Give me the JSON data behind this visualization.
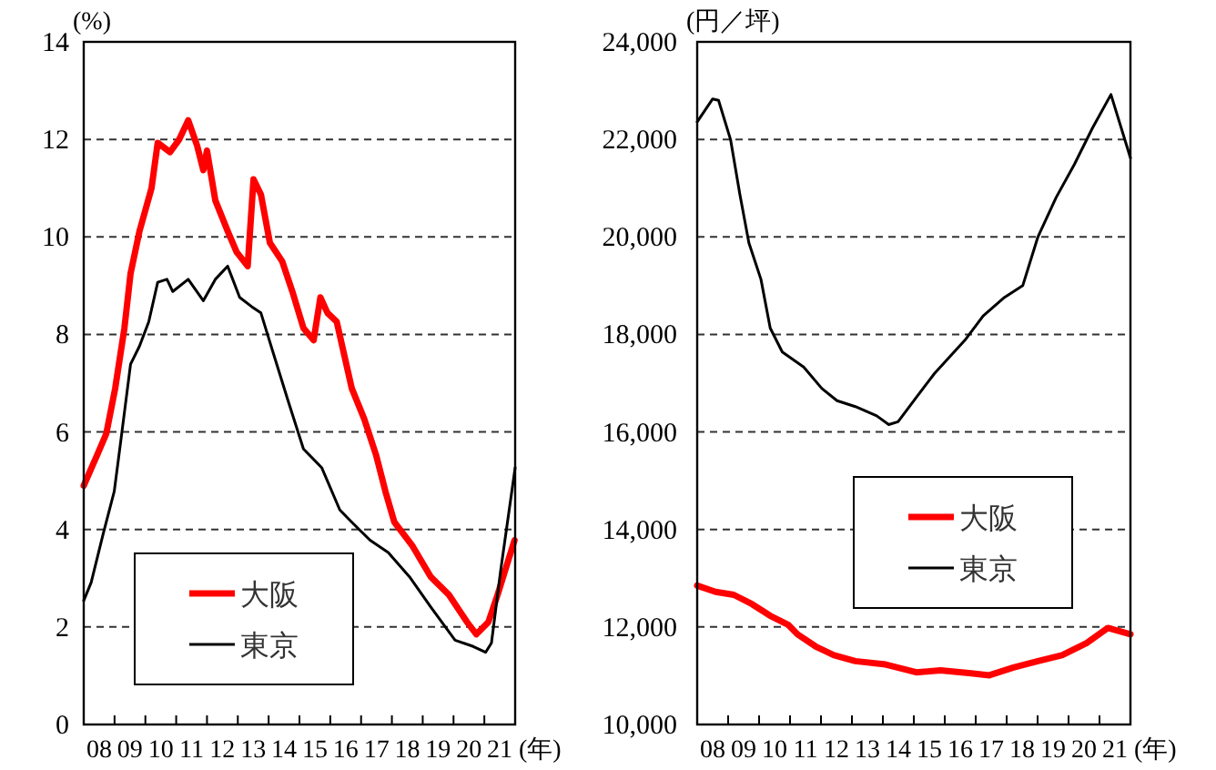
{
  "chart_data": [
    {
      "type": "line",
      "ylabel": "(%)",
      "xlabel": "(年)",
      "xlim": [
        7.5,
        21.5
      ],
      "ylim": [
        0,
        14
      ],
      "yticks": [
        0,
        2,
        4,
        6,
        8,
        10,
        12,
        14
      ],
      "xticks": [
        {
          "value": 7.5,
          "label": null
        },
        {
          "value": 8.5,
          "label": null
        },
        {
          "value": 9.5,
          "label": null
        },
        {
          "value": 10.5,
          "label": null
        },
        {
          "value": 11.5,
          "label": null
        },
        {
          "value": 12.5,
          "label": null
        },
        {
          "value": 13.5,
          "label": null
        },
        {
          "value": 14.5,
          "label": null
        },
        {
          "value": 15.5,
          "label": null
        },
        {
          "value": 16.5,
          "label": null
        },
        {
          "value": 17.5,
          "label": null
        },
        {
          "value": 18.5,
          "label": null
        },
        {
          "value": 19.5,
          "label": null
        },
        {
          "value": 20.5,
          "label": null
        },
        {
          "value": 21.5,
          "label": null
        },
        {
          "value": 8,
          "label": "08"
        },
        {
          "value": 9,
          "label": "09"
        },
        10,
        11,
        12,
        13,
        14,
        15,
        16,
        17,
        18,
        19,
        20,
        21
      ],
      "grid": "y",
      "legend": "bottom left",
      "line_style": "solid",
      "marker": "none",
      "series": [
        {
          "name": "大阪",
          "color": "#ff0000",
          "x": [
            7.5,
            7.93,
            8.23,
            8.52,
            8.82,
            9.02,
            9.31,
            9.7,
            9.9,
            10.3,
            10.59,
            10.89,
            11.18,
            11.38,
            11.5,
            11.77,
            12.17,
            12.46,
            12.82,
            13.01,
            13.25,
            13.54,
            13.94,
            14.27,
            14.63,
            14.96,
            15.18,
            15.41,
            15.71,
            16.2,
            16.6,
            16.99,
            17.29,
            17.58,
            18.17,
            18.76,
            19.35,
            19.94,
            20.24,
            20.63,
            20.93,
            21.48
          ],
          "values": [
            4.9,
            5.52,
            5.96,
            6.89,
            8.13,
            9.25,
            10.12,
            11.0,
            11.93,
            11.74,
            11.99,
            12.39,
            11.87,
            11.37,
            11.77,
            10.75,
            10.12,
            9.69,
            9.4,
            11.18,
            10.87,
            9.88,
            9.5,
            8.88,
            8.13,
            7.88,
            8.76,
            8.44,
            8.26,
            6.89,
            6.27,
            5.52,
            4.78,
            4.15,
            3.66,
            3.03,
            2.66,
            2.1,
            1.85,
            2.1,
            2.66,
            3.78
          ]
        },
        {
          "name": "東京",
          "color": "#000000",
          "x": [
            7.5,
            7.74,
            8.13,
            8.49,
            8.72,
            9.02,
            9.31,
            9.61,
            9.9,
            10.2,
            10.39,
            10.89,
            11.38,
            11.77,
            12.17,
            12.56,
            12.95,
            13.25,
            13.64,
            14.13,
            14.63,
            15.22,
            15.81,
            16.2,
            16.79,
            17.38,
            18.07,
            18.76,
            19.55,
            20.14,
            20.54,
            20.73,
            21.03,
            21.5
          ],
          "values": [
            2.54,
            2.91,
            3.91,
            4.78,
            5.9,
            7.39,
            7.76,
            8.26,
            9.07,
            9.13,
            8.88,
            9.13,
            8.69,
            9.13,
            9.4,
            8.76,
            8.57,
            8.44,
            7.64,
            6.64,
            5.65,
            5.27,
            4.4,
            4.15,
            3.78,
            3.53,
            3.03,
            2.41,
            1.73,
            1.6,
            1.48,
            1.67,
            3.16,
            5.27
          ]
        }
      ]
    },
    {
      "type": "line",
      "ylabel": "(円／坪)",
      "xlabel": "(年)",
      "xlim": [
        7.5,
        21.5
      ],
      "ylim": [
        10000,
        24000
      ],
      "yticks": [
        {
          "value": 10000,
          "label": "10,000"
        },
        {
          "value": 12000,
          "label": "12,000"
        },
        {
          "value": 14000,
          "label": "14,000"
        },
        {
          "value": 16000,
          "label": "16,000"
        },
        {
          "value": 18000,
          "label": "18,000"
        },
        {
          "value": 20000,
          "label": "20,000"
        },
        {
          "value": 22000,
          "label": "22,000"
        },
        {
          "value": 24000,
          "label": "24,000"
        }
      ],
      "xticks": [
        {
          "value": 7.5,
          "label": null
        },
        {
          "value": 8.5,
          "label": null
        },
        {
          "value": 9.5,
          "label": null
        },
        {
          "value": 10.5,
          "label": null
        },
        {
          "value": 11.5,
          "label": null
        },
        {
          "value": 12.5,
          "label": null
        },
        {
          "value": 13.5,
          "label": null
        },
        {
          "value": 14.5,
          "label": null
        },
        {
          "value": 15.5,
          "label": null
        },
        {
          "value": 16.5,
          "label": null
        },
        {
          "value": 17.5,
          "label": null
        },
        {
          "value": 18.5,
          "label": null
        },
        {
          "value": 19.5,
          "label": null
        },
        {
          "value": 20.5,
          "label": null
        },
        {
          "value": 21.5,
          "label": null
        },
        {
          "value": 8,
          "label": "08"
        },
        {
          "value": 9,
          "label": "09"
        },
        10,
        11,
        12,
        13,
        14,
        15,
        16,
        17,
        18,
        19,
        20,
        21
      ],
      "grid": "y",
      "legend": "right",
      "line_style": "solid",
      "marker": "none",
      "series": [
        {
          "name": "大阪",
          "color": "#ff0000",
          "x": [
            7.5,
            8.09,
            8.68,
            9.27,
            9.86,
            10.45,
            10.74,
            11.33,
            11.92,
            12.61,
            13.59,
            14.58,
            15.36,
            16.35,
            16.94,
            17.72,
            18.51,
            19.29,
            20.08,
            20.77,
            21.5
          ],
          "values": [
            12850,
            12720,
            12660,
            12470,
            12230,
            12040,
            11850,
            11600,
            11420,
            11300,
            11230,
            11070,
            11110,
            11050,
            11010,
            11170,
            11300,
            11420,
            11670,
            11980,
            11850
          ]
        },
        {
          "name": "東京",
          "color": "#000000",
          "x": [
            7.5,
            8.0,
            8.19,
            8.58,
            8.88,
            9.17,
            9.56,
            9.86,
            10.25,
            10.94,
            11.53,
            12.02,
            12.61,
            13.3,
            13.69,
            13.99,
            14.58,
            15.17,
            16.15,
            16.74,
            17.43,
            18.02,
            18.51,
            19.1,
            19.69,
            20.28,
            20.87,
            21.5
          ],
          "values": [
            22360,
            22830,
            22800,
            21990,
            20870,
            19880,
            19130,
            18130,
            17640,
            17330,
            16890,
            16640,
            16520,
            16330,
            16150,
            16210,
            16710,
            17200,
            17880,
            18380,
            18760,
            19000,
            20000,
            20810,
            21490,
            22240,
            22920,
            21620
          ]
        }
      ]
    }
  ]
}
